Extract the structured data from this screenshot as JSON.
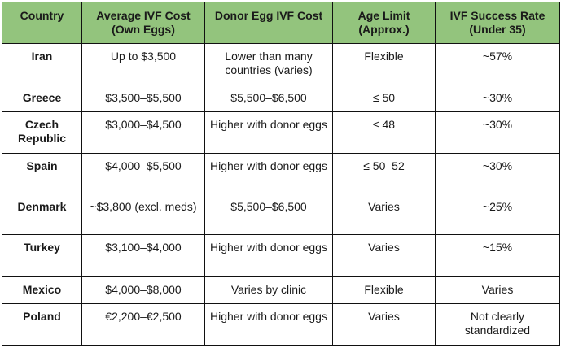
{
  "table": {
    "header_bg": "#93c47d",
    "headers": [
      "Country",
      "Average IVF Cost (Own Eggs)",
      "Donor Egg IVF Cost",
      "Age Limit (Approx.)",
      "IVF Success Rate (Under 35)"
    ],
    "rows": [
      {
        "country": "Iran",
        "own_eggs_cost": "Up to $3,500",
        "donor_egg_cost": "Lower than many countries (varies)",
        "age_limit": "Flexible",
        "success_rate": "~57%"
      },
      {
        "country": "Greece",
        "own_eggs_cost": "$3,500–$5,500",
        "donor_egg_cost": "$5,500–$6,500",
        "age_limit": "≤ 50",
        "success_rate": "~30%"
      },
      {
        "country": "Czech Republic",
        "own_eggs_cost": "$3,000–$4,500",
        "donor_egg_cost": "Higher with donor eggs",
        "age_limit": "≤ 48",
        "success_rate": "~30%"
      },
      {
        "country": "Spain",
        "own_eggs_cost": "$4,000–$5,500",
        "donor_egg_cost": "Higher with donor eggs",
        "age_limit": "≤ 50–52",
        "success_rate": "~30%"
      },
      {
        "country": "Denmark",
        "own_eggs_cost": "~$3,800 (excl. meds)",
        "donor_egg_cost": "$5,500–$6,500",
        "age_limit": "Varies",
        "success_rate": "~25%"
      },
      {
        "country": "Turkey",
        "own_eggs_cost": "$3,100–$4,000",
        "donor_egg_cost": "Higher with donor eggs",
        "age_limit": "Varies",
        "success_rate": "~15%"
      },
      {
        "country": "Mexico",
        "own_eggs_cost": "$4,000–$8,000",
        "donor_egg_cost": "Varies by clinic",
        "age_limit": "Flexible",
        "success_rate": "Varies"
      },
      {
        "country": "Poland",
        "own_eggs_cost": "€2,200–€2,500",
        "donor_egg_cost": "Higher with donor eggs",
        "age_limit": "Varies",
        "success_rate": "Not clearly standardized"
      }
    ]
  }
}
